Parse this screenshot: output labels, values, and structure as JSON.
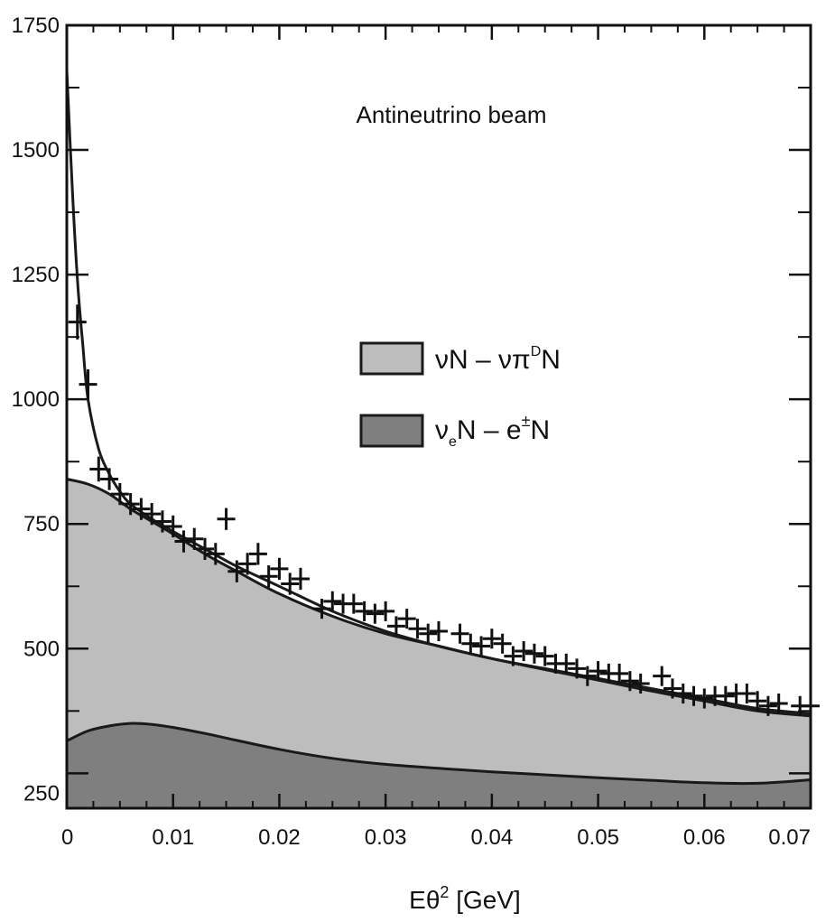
{
  "chart_data": {
    "type": "area",
    "title": "",
    "annotation": "Antineutrino beam",
    "xlabel_main": "Eθ",
    "xlabel_sup": "2",
    "xlabel_unit": " [GeV]",
    "ylabel": "",
    "xlim": [
      0,
      0.07
    ],
    "ylim": [
      180,
      1750
    ],
    "x_ticks": [
      0,
      0.01,
      0.02,
      0.03,
      0.04,
      0.05,
      0.06,
      0.07
    ],
    "x_tick_labels": [
      "0",
      "0.01",
      "0.02",
      "0.03",
      "0.04",
      "0.05",
      "0.06",
      "0.07"
    ],
    "y_ticks": [
      250,
      500,
      750,
      1000,
      1250,
      1500,
      1750
    ],
    "y_tick_labels": [
      "250",
      "500",
      "750",
      "1000",
      "1250",
      "1500",
      "1750"
    ],
    "legend": {
      "placement": "center",
      "entries": [
        {
          "label_main": "νN – νπ",
          "label_sup": "D",
          "label_end": "N",
          "color": "#bdbdbd"
        },
        {
          "label_main": "ν",
          "label_sub": "e",
          "label_mid": "N – e",
          "label_sup": "±",
          "label_end": "N",
          "color": "#7f7f7f"
        }
      ]
    },
    "series": [
      {
        "label": "νN – νπDN",
        "kind": "area",
        "color": "#bdbdbd",
        "x": [
          0,
          0.002,
          0.004,
          0.006,
          0.008,
          0.01,
          0.013,
          0.016,
          0.02,
          0.025,
          0.03,
          0.035,
          0.04,
          0.045,
          0.05,
          0.055,
          0.06,
          0.065,
          0.07
        ],
        "y": [
          840,
          830,
          810,
          780,
          755,
          730,
          690,
          655,
          610,
          565,
          530,
          505,
          480,
          460,
          440,
          420,
          400,
          380,
          370
        ]
      },
      {
        "label": "νeN – e±N",
        "kind": "area",
        "color": "#7f7f7f",
        "x": [
          0,
          0.002,
          0.004,
          0.006,
          0.008,
          0.01,
          0.013,
          0.016,
          0.02,
          0.025,
          0.03,
          0.035,
          0.04,
          0.045,
          0.05,
          0.055,
          0.06,
          0.065,
          0.07
        ],
        "y": [
          315,
          335,
          345,
          350,
          348,
          342,
          330,
          316,
          298,
          280,
          268,
          260,
          253,
          247,
          241,
          236,
          231,
          230,
          237
        ]
      },
      {
        "label": "fit",
        "kind": "line",
        "color": "#1a1a1a",
        "x": [
          0,
          0.0005,
          0.001,
          0.0015,
          0.002,
          0.003,
          0.004,
          0.005,
          0.006,
          0.008,
          0.01,
          0.013,
          0.016,
          0.02,
          0.025,
          0.03,
          0.035,
          0.04,
          0.045,
          0.05,
          0.055,
          0.06,
          0.065,
          0.07
        ],
        "y": [
          1660,
          1430,
          1240,
          1110,
          1000,
          900,
          850,
          815,
          790,
          760,
          735,
          700,
          665,
          625,
          575,
          535,
          505,
          480,
          458,
          437,
          415,
          395,
          375,
          365
        ]
      }
    ],
    "points": {
      "label": "data",
      "x": [
        0.001,
        0.002,
        0.003,
        0.004,
        0.005,
        0.006,
        0.007,
        0.008,
        0.009,
        0.01,
        0.011,
        0.012,
        0.013,
        0.014,
        0.015,
        0.016,
        0.017,
        0.018,
        0.019,
        0.02,
        0.021,
        0.022,
        0.024,
        0.025,
        0.026,
        0.027,
        0.028,
        0.029,
        0.03,
        0.031,
        0.032,
        0.033,
        0.034,
        0.035,
        0.037,
        0.038,
        0.039,
        0.04,
        0.041,
        0.042,
        0.043,
        0.044,
        0.045,
        0.046,
        0.047,
        0.048,
        0.049,
        0.05,
        0.051,
        0.052,
        0.053,
        0.054,
        0.056,
        0.057,
        0.058,
        0.059,
        0.06,
        0.061,
        0.062,
        0.063,
        0.064,
        0.065,
        0.066,
        0.067,
        0.069,
        0.07
      ],
      "y": [
        1155,
        1030,
        860,
        840,
        810,
        790,
        780,
        770,
        755,
        745,
        715,
        720,
        700,
        690,
        760,
        655,
        670,
        690,
        645,
        660,
        630,
        640,
        580,
        595,
        590,
        590,
        575,
        570,
        575,
        545,
        560,
        540,
        530,
        535,
        530,
        510,
        505,
        520,
        510,
        485,
        495,
        490,
        485,
        470,
        470,
        460,
        445,
        455,
        450,
        450,
        435,
        430,
        445,
        420,
        410,
        405,
        400,
        405,
        405,
        410,
        410,
        395,
        385,
        390,
        385,
        385
      ],
      "yerr": [
        35,
        30,
        25,
        22,
        22,
        22,
        22,
        22,
        22,
        22,
        22,
        22,
        22,
        22,
        22,
        22,
        22,
        22,
        22,
        22,
        22,
        22,
        20,
        20,
        20,
        20,
        20,
        20,
        20,
        20,
        20,
        20,
        20,
        20,
        20,
        20,
        20,
        20,
        20,
        20,
        20,
        20,
        20,
        20,
        20,
        20,
        20,
        20,
        20,
        20,
        20,
        20,
        20,
        20,
        20,
        20,
        20,
        20,
        20,
        20,
        20,
        20,
        20,
        20,
        20,
        20
      ]
    }
  }
}
